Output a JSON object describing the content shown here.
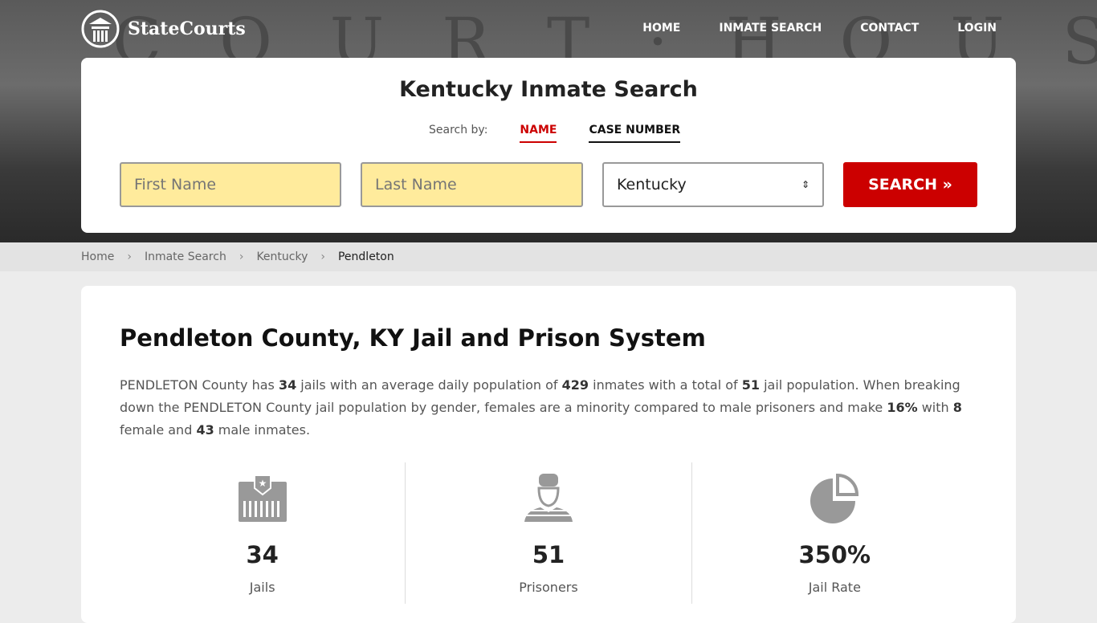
{
  "brand": "StateCourts",
  "hero_text": "COURT·HOUSE",
  "nav": [
    "HOME",
    "INMATE SEARCH",
    "CONTACT",
    "LOGIN"
  ],
  "search": {
    "title": "Kentucky Inmate Search",
    "by": "Search by:",
    "tabs": [
      "NAME",
      "CASE NUMBER"
    ],
    "first_placeholder": "First Name",
    "last_placeholder": "Last Name",
    "state": "Kentucky",
    "button": "SEARCH »"
  },
  "breadcrumb": [
    "Home",
    "Inmate Search",
    "Kentucky",
    "Pendleton"
  ],
  "main": {
    "title": "Pendleton County, KY Jail and Prison System",
    "p": [
      "PENDLETON County has ",
      "34",
      " jails with an average daily population of ",
      "429",
      " inmates with a total of ",
      "51",
      " jail population. When breaking down the PENDLETON County jail population by gender, females are a minority compared to male prisoners and make ",
      "16%",
      " with ",
      "8",
      " female and ",
      "43",
      " male inmates."
    ],
    "stats": [
      {
        "value": "34",
        "label": "Jails",
        "icon": "jail-icon"
      },
      {
        "value": "51",
        "label": "Prisoners",
        "icon": "prisoner-icon"
      },
      {
        "value": "350%",
        "label": "Jail Rate",
        "icon": "pie-chart-icon"
      }
    ]
  },
  "colors": {
    "accent": "#cc0000",
    "input": "#ffeb9c"
  }
}
